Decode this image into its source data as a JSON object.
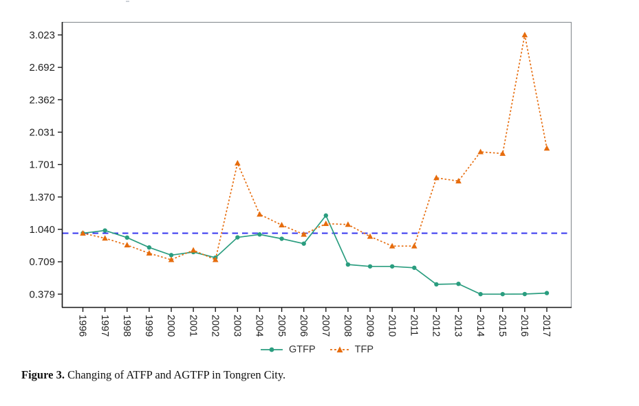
{
  "chart_data": {
    "type": "line",
    "title": "",
    "xlabel": "",
    "ylabel": "",
    "grid": false,
    "legend_position": "bottom-center",
    "x": [
      1996,
      1997,
      1998,
      1999,
      2000,
      2001,
      2002,
      2003,
      2004,
      2005,
      2006,
      2007,
      2008,
      2009,
      2010,
      2011,
      2012,
      2013,
      2014,
      2015,
      2016,
      2017
    ],
    "x_tick_labels": [
      "1996",
      "1997",
      "1998",
      "1999",
      "2000",
      "2001",
      "2002",
      "2003",
      "2004",
      "2005",
      "2006",
      "2007",
      "2008",
      "2009",
      "2010",
      "2011",
      "2012",
      "2013",
      "2014",
      "2015",
      "2016",
      "2017"
    ],
    "y_ticks": [
      {
        "value": 0.379,
        "label": "0.379"
      },
      {
        "value": 0.709,
        "label": "0.709"
      },
      {
        "value": 1.04,
        "label": "1.040"
      },
      {
        "value": 1.37,
        "label": "1.370"
      },
      {
        "value": 1.701,
        "label": "1.701"
      },
      {
        "value": 2.031,
        "label": "2.031"
      },
      {
        "value": 2.362,
        "label": "2.362"
      },
      {
        "value": 2.692,
        "label": "2.692"
      },
      {
        "value": 3.023,
        "label": "3.023"
      }
    ],
    "x_range": [
      1995.05,
      2018.09
    ],
    "y_range": [
      0.247,
      3.155
    ],
    "reference_line": {
      "value": 1.0,
      "color": "#3535ef",
      "style": "longdash",
      "width": 2
    },
    "series": [
      {
        "name": "GTFP",
        "color": "#2a9d7f",
        "marker": "circle",
        "line_style": "solid",
        "values": [
          1.0,
          1.028,
          0.956,
          0.855,
          0.777,
          0.808,
          0.751,
          0.958,
          0.988,
          0.944,
          0.894,
          1.181,
          0.681,
          0.662,
          0.662,
          0.648,
          0.479,
          0.484,
          0.379,
          0.379,
          0.38,
          0.39
        ]
      },
      {
        "name": "TFP",
        "color": "#e66c0d",
        "marker": "triangle",
        "line_style": "dashed",
        "values": [
          1.0,
          0.949,
          0.88,
          0.796,
          0.73,
          0.827,
          0.73,
          1.715,
          1.193,
          1.084,
          0.988,
          1.098,
          1.089,
          0.967,
          0.869,
          0.869,
          1.565,
          1.532,
          1.83,
          1.813,
          3.023,
          1.867
        ]
      }
    ],
    "axis_colors": {
      "panel_border": "#8c9196",
      "axis_line": "#1a1a1a",
      "tick": "#1a1a1a"
    }
  },
  "legend": {
    "items": [
      {
        "label": "GTFP"
      },
      {
        "label": "TFP"
      }
    ]
  },
  "caption": {
    "label": "Figure 3.",
    "text": "Changing of ATFP and AGTFP in Tongren City."
  }
}
